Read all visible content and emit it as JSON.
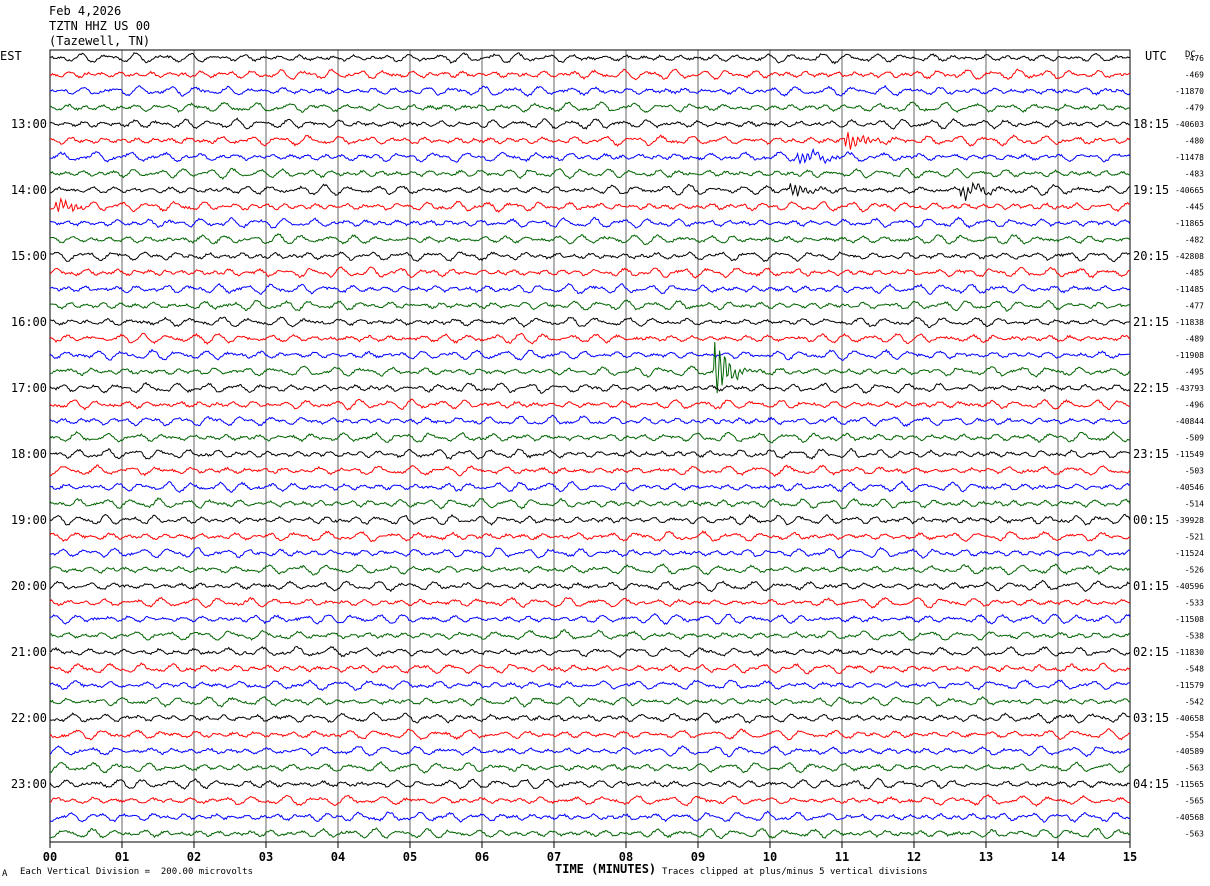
{
  "header": {
    "date": "Feb 4,2026",
    "station": "TZTN HHZ US 00",
    "location": "(Tazewell, TN)"
  },
  "left_timezone": "EST",
  "right_timezone": "UTC",
  "dc_label": "DC",
  "footer": {
    "scale_note": "Each Vertical Division =  200.00 microvolts",
    "clip_note": "Traces clipped at plus/minus 5 vertical divisions",
    "corner_mark": "A"
  },
  "colors": {
    "black": "#000000",
    "red": "#ff0000",
    "blue": "#0000ff",
    "green": "#006400"
  },
  "chart_data": {
    "type": "line",
    "xlabel": "TIME (MINUTES)",
    "xlim": [
      0,
      15
    ],
    "x_ticks": [
      "00",
      "01",
      "02",
      "03",
      "04",
      "05",
      "06",
      "07",
      "08",
      "09",
      "10",
      "11",
      "12",
      "13",
      "14",
      "15"
    ],
    "trace_color_cycle": [
      "black",
      "red",
      "blue",
      "green"
    ],
    "trace_count": 48,
    "left_hour_labels": [
      "13:00",
      "14:00",
      "15:00",
      "16:00",
      "17:00",
      "18:00",
      "19:00",
      "20:00",
      "21:00",
      "22:00",
      "23:00"
    ],
    "right_hour_labels": [
      "18:15",
      "19:15",
      "20:15",
      "21:15",
      "22:15",
      "23:15",
      "00:15",
      "01:15",
      "02:15",
      "03:15",
      "04:15"
    ],
    "dc_offsets": [
      "-476",
      "-469",
      "-11870",
      "-479",
      "-40603",
      "-480",
      "-11478",
      "-483",
      "-40665",
      "-445",
      "-11865",
      "-482",
      "-42808",
      "-485",
      "-11485",
      "-477",
      "-11838",
      "-489",
      "-11908",
      "-495",
      "-43793",
      "-496",
      "-40844",
      "-509",
      "-11549",
      "-503",
      "-40546",
      "-514",
      "-39928",
      "-521",
      "-11524",
      "-526",
      "-40596",
      "-533",
      "-11508",
      "-538",
      "-11830",
      "-548",
      "-11579",
      "-542",
      "-40658",
      "-554",
      "-40589",
      "-563",
      "-11565",
      "-565",
      "-40568",
      "-563"
    ],
    "notable_events": [
      {
        "trace": 19,
        "minute": 9.25,
        "amplitude": "large",
        "label": ""
      },
      {
        "trace": 8,
        "minute": 10.3,
        "amplitude": "medium",
        "label": ""
      },
      {
        "trace": 8,
        "minute": 12.7,
        "amplitude": "medium",
        "label": ""
      },
      {
        "trace": 9,
        "minute": 0.1,
        "amplitude": "medium",
        "label": ""
      },
      {
        "trace": 5,
        "minute": 11.1,
        "amplitude": "medium",
        "label": ""
      },
      {
        "trace": 6,
        "minute": 10.4,
        "amplitude": "medium",
        "label": ""
      }
    ]
  }
}
